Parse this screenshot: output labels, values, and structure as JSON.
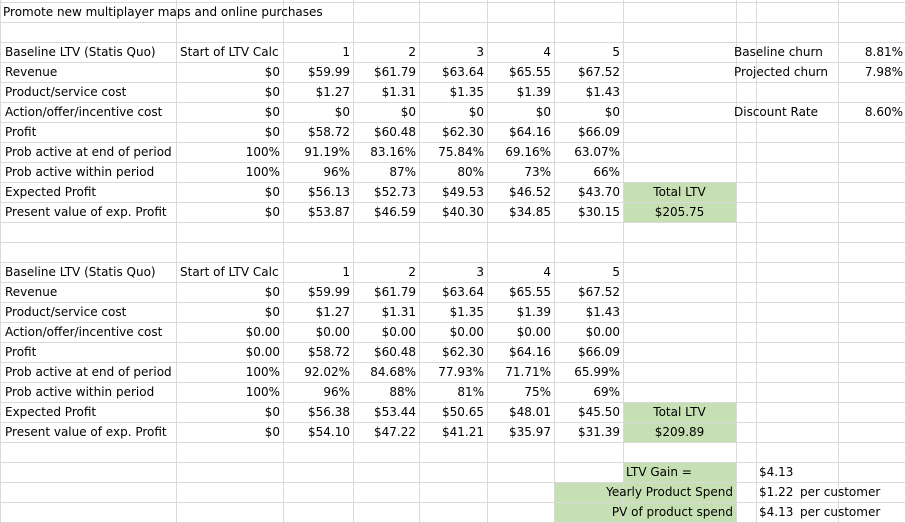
{
  "title": "Promote new multiplayer maps and online purchases",
  "table1": {
    "header_label": "Baseline LTV (Statis Quo)",
    "start_label": "Start of LTV Calc",
    "periods": [
      "1",
      "2",
      "3",
      "4",
      "5"
    ],
    "rows": [
      {
        "label": "Revenue",
        "start": "$0",
        "vals": [
          "$59.99",
          "$61.79",
          "$63.64",
          "$65.55",
          "$67.52"
        ]
      },
      {
        "label": "Product/service cost",
        "start": "$0",
        "vals": [
          "$1.27",
          "$1.31",
          "$1.35",
          "$1.39",
          "$1.43"
        ]
      },
      {
        "label": "Action/offer/incentive cost",
        "start": "$0",
        "vals": [
          "$0",
          "$0",
          "$0",
          "$0",
          "$0"
        ]
      },
      {
        "label": "Profit",
        "start": "$0",
        "vals": [
          "$58.72",
          "$60.48",
          "$62.30",
          "$64.16",
          "$66.09"
        ]
      },
      {
        "label": "Prob active at end of period",
        "start": "100%",
        "vals": [
          "91.19%",
          "83.16%",
          "75.84%",
          "69.16%",
          "63.07%"
        ]
      },
      {
        "label": "Prob active within period",
        "start": "100%",
        "vals": [
          "96%",
          "87%",
          "80%",
          "73%",
          "66%"
        ]
      },
      {
        "label": "Expected Profit",
        "start": "$0",
        "vals": [
          "$56.13",
          "$52.73",
          "$49.53",
          "$46.52",
          "$43.70"
        ]
      },
      {
        "label": "Present value of exp. Profit",
        "start": "$0",
        "vals": [
          "$53.87",
          "$46.59",
          "$40.30",
          "$34.85",
          "$30.15"
        ]
      }
    ],
    "total_label": "Total LTV",
    "total_value": "$205.75"
  },
  "table2": {
    "header_label": "Baseline LTV (Statis Quo)",
    "start_label": "Start of LTV Calc",
    "periods": [
      "1",
      "2",
      "3",
      "4",
      "5"
    ],
    "rows": [
      {
        "label": "Revenue",
        "start": "$0",
        "vals": [
          "$59.99",
          "$61.79",
          "$63.64",
          "$65.55",
          "$67.52"
        ]
      },
      {
        "label": "Product/service cost",
        "start": "$0",
        "vals": [
          "$1.27",
          "$1.31",
          "$1.35",
          "$1.39",
          "$1.43"
        ]
      },
      {
        "label": "Action/offer/incentive cost",
        "start": "$0.00",
        "vals": [
          "$0.00",
          "$0.00",
          "$0.00",
          "$0.00",
          "$0.00"
        ]
      },
      {
        "label": "Profit",
        "start": "$0.00",
        "vals": [
          "$58.72",
          "$60.48",
          "$62.30",
          "$64.16",
          "$66.09"
        ]
      },
      {
        "label": "Prob active at end of period",
        "start": "100%",
        "vals": [
          "92.02%",
          "84.68%",
          "77.93%",
          "71.71%",
          "65.99%"
        ]
      },
      {
        "label": "Prob active within period",
        "start": "100%",
        "vals": [
          "96%",
          "88%",
          "81%",
          "75%",
          "69%"
        ]
      },
      {
        "label": "Expected Profit",
        "start": "$0",
        "vals": [
          "$56.38",
          "$53.44",
          "$50.65",
          "$48.01",
          "$45.50"
        ]
      },
      {
        "label": "Present value of exp. Profit",
        "start": "$0",
        "vals": [
          "$54.10",
          "$47.22",
          "$41.21",
          "$35.97",
          "$31.39"
        ]
      }
    ],
    "total_label": "Total LTV",
    "total_value": "$209.89"
  },
  "params": {
    "baseline_churn_label": "Baseline churn",
    "baseline_churn_value": "8.81%",
    "projected_churn_label": "Projected churn",
    "projected_churn_value": "7.98%",
    "discount_rate_label": "Discount Rate",
    "discount_rate_value": "8.60%"
  },
  "summary": {
    "ltv_gain_label": "LTV Gain =",
    "ltv_gain_value": "$4.13",
    "yearly_spend_label": "Yearly Product Spend",
    "yearly_spend_value": "$1.22",
    "yearly_spend_unit": "per customer",
    "pv_spend_label": "PV of product spend",
    "pv_spend_value": "$4.13",
    "pv_spend_unit": "per customer"
  },
  "colors": {
    "highlight_fill": "#c6e0b4",
    "gridline": "#d9d9d9"
  }
}
